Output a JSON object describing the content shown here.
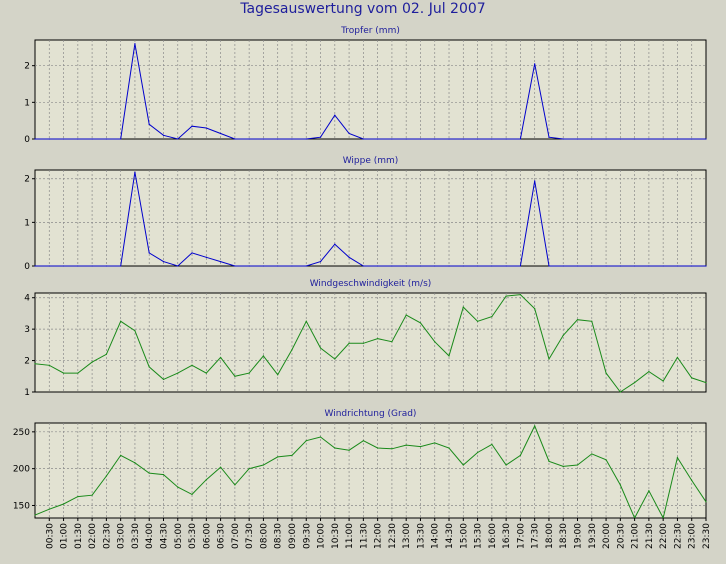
{
  "title": "Tagesauswertung vom 02. Jul 2007",
  "colors": {
    "background": "#d4d4c8",
    "plot_bg": "#e2e2d2",
    "title": "#1e1e9c",
    "blue_series": "#0000cc",
    "green_series": "#1a8a1a",
    "grid": "#8a8a8a"
  },
  "time_labels": [
    "00:30",
    "01:00",
    "01:30",
    "02:00",
    "02:30",
    "03:00",
    "03:30",
    "04:00",
    "04:30",
    "05:00",
    "05:30",
    "06:00",
    "06:30",
    "07:00",
    "07:30",
    "08:00",
    "08:30",
    "09:00",
    "09:30",
    "10:00",
    "10:30",
    "11:00",
    "11:30",
    "12:00",
    "12:30",
    "13:00",
    "13:30",
    "14:00",
    "14:30",
    "15:00",
    "15:30",
    "16:00",
    "16:30",
    "17:00",
    "17:30",
    "18:00",
    "18:30",
    "19:00",
    "19:30",
    "20:00",
    "20:30",
    "21:00",
    "21:30",
    "22:00",
    "22:30",
    "23:00",
    "23:30"
  ],
  "chart_data": [
    {
      "type": "line",
      "title": "Tropfer (mm)",
      "color": "blue",
      "ylim": [
        0,
        2.7
      ],
      "yticks": [
        0,
        1,
        2
      ],
      "x": [
        "00:00",
        "00:30",
        "01:00",
        "01:30",
        "02:00",
        "02:30",
        "03:00",
        "03:30",
        "04:00",
        "04:30",
        "05:00",
        "05:30",
        "06:00",
        "06:30",
        "07:00",
        "07:30",
        "08:00",
        "08:30",
        "09:00",
        "09:30",
        "10:00",
        "10:30",
        "11:00",
        "11:30",
        "12:00",
        "12:30",
        "13:00",
        "13:30",
        "14:00",
        "14:30",
        "15:00",
        "15:30",
        "16:00",
        "16:30",
        "17:00",
        "17:30",
        "18:00",
        "18:30",
        "19:00",
        "19:30",
        "20:00",
        "20:30",
        "21:00",
        "21:30",
        "22:00",
        "22:30",
        "23:00",
        "23:30"
      ],
      "values": [
        0,
        0,
        0,
        0,
        0,
        0,
        0,
        2.6,
        0.4,
        0.1,
        0,
        0.35,
        0.3,
        0.15,
        0,
        0,
        0,
        0,
        0,
        0,
        0.05,
        0.65,
        0.15,
        0,
        0,
        0,
        0,
        0,
        0,
        0,
        0,
        0,
        0,
        0,
        0,
        2.05,
        0.05,
        0,
        0,
        0,
        0,
        0,
        0,
        0,
        0,
        0,
        0,
        0
      ]
    },
    {
      "type": "line",
      "title": "Wippe (mm)",
      "color": "blue",
      "ylim": [
        0,
        2.2
      ],
      "yticks": [
        0,
        1,
        2
      ],
      "x": [
        "00:00",
        "00:30",
        "01:00",
        "01:30",
        "02:00",
        "02:30",
        "03:00",
        "03:30",
        "04:00",
        "04:30",
        "05:00",
        "05:30",
        "06:00",
        "06:30",
        "07:00",
        "07:30",
        "08:00",
        "08:30",
        "09:00",
        "09:30",
        "10:00",
        "10:30",
        "11:00",
        "11:30",
        "12:00",
        "12:30",
        "13:00",
        "13:30",
        "14:00",
        "14:30",
        "15:00",
        "15:30",
        "16:00",
        "16:30",
        "17:00",
        "17:30",
        "18:00",
        "18:30",
        "19:00",
        "19:30",
        "20:00",
        "20:30",
        "21:00",
        "21:30",
        "22:00",
        "22:30",
        "23:00",
        "23:30"
      ],
      "values": [
        0,
        0,
        0,
        0,
        0,
        0,
        0,
        2.15,
        0.3,
        0.1,
        0,
        0.3,
        0.2,
        0.1,
        0,
        0,
        0,
        0,
        0,
        0,
        0.1,
        0.5,
        0.2,
        0,
        0,
        0,
        0,
        0,
        0,
        0,
        0,
        0,
        0,
        0,
        0,
        1.95,
        0,
        0,
        0,
        0,
        0,
        0,
        0,
        0,
        0,
        0,
        0,
        0
      ]
    },
    {
      "type": "line",
      "title": "Windgeschwindigkeit (m/s)",
      "color": "green",
      "ylim": [
        1,
        4.15
      ],
      "yticks": [
        1,
        2,
        3,
        4
      ],
      "x": [
        "00:00",
        "00:30",
        "01:00",
        "01:30",
        "02:00",
        "02:30",
        "03:00",
        "03:30",
        "04:00",
        "04:30",
        "05:00",
        "05:30",
        "06:00",
        "06:30",
        "07:00",
        "07:30",
        "08:00",
        "08:30",
        "09:00",
        "09:30",
        "10:00",
        "10:30",
        "11:00",
        "11:30",
        "12:00",
        "12:30",
        "13:00",
        "13:30",
        "14:00",
        "14:30",
        "15:00",
        "15:30",
        "16:00",
        "16:30",
        "17:00",
        "17:30",
        "18:00",
        "18:30",
        "19:00",
        "19:30",
        "20:00",
        "20:30",
        "21:00",
        "21:30",
        "22:00",
        "22:30",
        "23:00",
        "23:30"
      ],
      "values": [
        1.9,
        1.85,
        1.6,
        1.6,
        1.95,
        2.2,
        3.25,
        2.95,
        1.8,
        1.4,
        1.6,
        1.85,
        1.6,
        2.1,
        1.5,
        1.6,
        2.15,
        1.55,
        2.35,
        3.25,
        2.4,
        2.05,
        2.55,
        2.55,
        2.7,
        2.6,
        3.45,
        3.2,
        2.6,
        2.15,
        3.7,
        3.25,
        3.4,
        4.05,
        4.1,
        3.65,
        2.05,
        2.8,
        3.3,
        3.25,
        1.6,
        1.0,
        1.3,
        1.65,
        1.35,
        2.1,
        1.45,
        1.3
      ]
    },
    {
      "type": "line",
      "title": "Windrichtung (Grad)",
      "color": "green",
      "ylim": [
        133,
        262
      ],
      "yticks": [
        150,
        200,
        250
      ],
      "x": [
        "00:00",
        "00:30",
        "01:00",
        "01:30",
        "02:00",
        "02:30",
        "03:00",
        "03:30",
        "04:00",
        "04:30",
        "05:00",
        "05:30",
        "06:00",
        "06:30",
        "07:00",
        "07:30",
        "08:00",
        "08:30",
        "09:00",
        "09:30",
        "10:00",
        "10:30",
        "11:00",
        "11:30",
        "12:00",
        "12:30",
        "13:00",
        "13:30",
        "14:00",
        "14:30",
        "15:00",
        "15:30",
        "16:00",
        "16:30",
        "17:00",
        "17:30",
        "18:00",
        "18:30",
        "19:00",
        "19:30",
        "20:00",
        "20:30",
        "21:00",
        "21:30",
        "22:00",
        "22:30",
        "23:00",
        "23:30"
      ],
      "values": [
        137,
        145,
        152,
        162,
        164,
        190,
        218,
        208,
        194,
        192,
        175,
        165,
        185,
        202,
        178,
        200,
        205,
        216,
        218,
        238,
        243,
        228,
        225,
        238,
        228,
        227,
        232,
        230,
        235,
        228,
        205,
        222,
        233,
        205,
        218,
        258,
        210,
        203,
        205,
        220,
        212,
        178,
        133,
        170,
        133,
        215,
        184,
        155
      ]
    }
  ]
}
